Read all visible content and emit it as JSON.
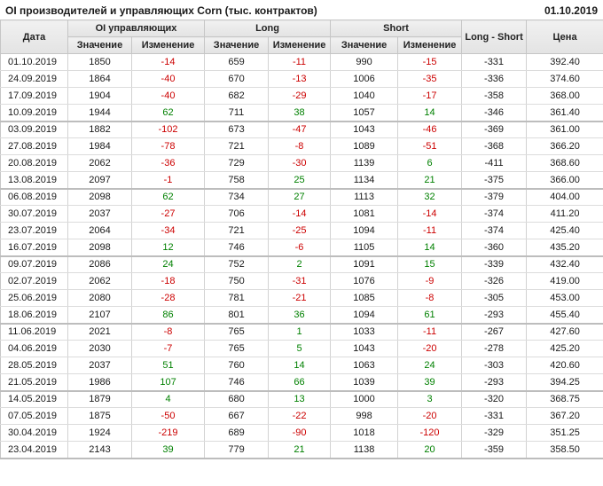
{
  "title": "OI производителей и управляющих Corn (тыс. контрактов)",
  "report_date": "01.10.2019",
  "colors": {
    "positive_change": "#008000",
    "negative_change": "#cc0000",
    "header_background": "#e9e9e9",
    "border": "#c6c6c6"
  },
  "table": {
    "headers": {
      "date": "Дата",
      "group_oi": "OI управляющих",
      "group_long": "Long",
      "group_short": "Short",
      "long_short": "Long - Short",
      "price": "Цена",
      "sub_value": "Значение",
      "sub_change": "Изменение"
    },
    "rows": [
      {
        "date": "01.10.2019",
        "oi": 1850,
        "oi_chg": -14,
        "long": 659,
        "long_chg": -11,
        "short": 990,
        "short_chg": -15,
        "ls": -331,
        "price": "392.40"
      },
      {
        "date": "24.09.2019",
        "oi": 1864,
        "oi_chg": -40,
        "long": 670,
        "long_chg": -13,
        "short": 1006,
        "short_chg": -35,
        "ls": -336,
        "price": "374.60"
      },
      {
        "date": "17.09.2019",
        "oi": 1904,
        "oi_chg": -40,
        "long": 682,
        "long_chg": -29,
        "short": 1040,
        "short_chg": -17,
        "ls": -358,
        "price": "368.00"
      },
      {
        "date": "10.09.2019",
        "oi": 1944,
        "oi_chg": 62,
        "long": 711,
        "long_chg": 38,
        "short": 1057,
        "short_chg": 14,
        "ls": -346,
        "price": "361.40"
      },
      {
        "date": "03.09.2019",
        "oi": 1882,
        "oi_chg": -102,
        "long": 673,
        "long_chg": -47,
        "short": 1043,
        "short_chg": -46,
        "ls": -369,
        "price": "361.00"
      },
      {
        "date": "27.08.2019",
        "oi": 1984,
        "oi_chg": -78,
        "long": 721,
        "long_chg": -8,
        "short": 1089,
        "short_chg": -51,
        "ls": -368,
        "price": "366.20"
      },
      {
        "date": "20.08.2019",
        "oi": 2062,
        "oi_chg": -36,
        "long": 729,
        "long_chg": -30,
        "short": 1139,
        "short_chg": 6,
        "ls": -411,
        "price": "368.60"
      },
      {
        "date": "13.08.2019",
        "oi": 2097,
        "oi_chg": -1,
        "long": 758,
        "long_chg": 25,
        "short": 1134,
        "short_chg": 21,
        "ls": -375,
        "price": "366.00"
      },
      {
        "date": "06.08.2019",
        "oi": 2098,
        "oi_chg": 62,
        "long": 734,
        "long_chg": 27,
        "short": 1113,
        "short_chg": 32,
        "ls": -379,
        "price": "404.00"
      },
      {
        "date": "30.07.2019",
        "oi": 2037,
        "oi_chg": -27,
        "long": 706,
        "long_chg": -14,
        "short": 1081,
        "short_chg": -14,
        "ls": -374,
        "price": "411.20"
      },
      {
        "date": "23.07.2019",
        "oi": 2064,
        "oi_chg": -34,
        "long": 721,
        "long_chg": -25,
        "short": 1094,
        "short_chg": -11,
        "ls": -374,
        "price": "425.40"
      },
      {
        "date": "16.07.2019",
        "oi": 2098,
        "oi_chg": 12,
        "long": 746,
        "long_chg": -6,
        "short": 1105,
        "short_chg": 14,
        "ls": -360,
        "price": "435.20"
      },
      {
        "date": "09.07.2019",
        "oi": 2086,
        "oi_chg": 24,
        "long": 752,
        "long_chg": 2,
        "short": 1091,
        "short_chg": 15,
        "ls": -339,
        "price": "432.40"
      },
      {
        "date": "02.07.2019",
        "oi": 2062,
        "oi_chg": -18,
        "long": 750,
        "long_chg": -31,
        "short": 1076,
        "short_chg": -9,
        "ls": -326,
        "price": "419.00"
      },
      {
        "date": "25.06.2019",
        "oi": 2080,
        "oi_chg": -28,
        "long": 781,
        "long_chg": -21,
        "short": 1085,
        "short_chg": -8,
        "ls": -305,
        "price": "453.00"
      },
      {
        "date": "18.06.2019",
        "oi": 2107,
        "oi_chg": 86,
        "long": 801,
        "long_chg": 36,
        "short": 1094,
        "short_chg": 61,
        "ls": -293,
        "price": "455.40"
      },
      {
        "date": "11.06.2019",
        "oi": 2021,
        "oi_chg": -8,
        "long": 765,
        "long_chg": 1,
        "short": 1033,
        "short_chg": -11,
        "ls": -267,
        "price": "427.60"
      },
      {
        "date": "04.06.2019",
        "oi": 2030,
        "oi_chg": -7,
        "long": 765,
        "long_chg": 5,
        "short": 1043,
        "short_chg": -20,
        "ls": -278,
        "price": "425.20"
      },
      {
        "date": "28.05.2019",
        "oi": 2037,
        "oi_chg": 51,
        "long": 760,
        "long_chg": 14,
        "short": 1063,
        "short_chg": 24,
        "ls": -303,
        "price": "420.60"
      },
      {
        "date": "21.05.2019",
        "oi": 1986,
        "oi_chg": 107,
        "long": 746,
        "long_chg": 66,
        "short": 1039,
        "short_chg": 39,
        "ls": -293,
        "price": "394.25"
      },
      {
        "date": "14.05.2019",
        "oi": 1879,
        "oi_chg": 4,
        "long": 680,
        "long_chg": 13,
        "short": 1000,
        "short_chg": 3,
        "ls": -320,
        "price": "368.75"
      },
      {
        "date": "07.05.2019",
        "oi": 1875,
        "oi_chg": -50,
        "long": 667,
        "long_chg": -22,
        "short": 998,
        "short_chg": -20,
        "ls": -331,
        "price": "367.20"
      },
      {
        "date": "30.04.2019",
        "oi": 1924,
        "oi_chg": -219,
        "long": 689,
        "long_chg": -90,
        "short": 1018,
        "short_chg": -120,
        "ls": -329,
        "price": "351.25"
      },
      {
        "date": "23.04.2019",
        "oi": 2143,
        "oi_chg": 39,
        "long": 779,
        "long_chg": 21,
        "short": 1138,
        "short_chg": 20,
        "ls": -359,
        "price": "358.50"
      }
    ]
  }
}
